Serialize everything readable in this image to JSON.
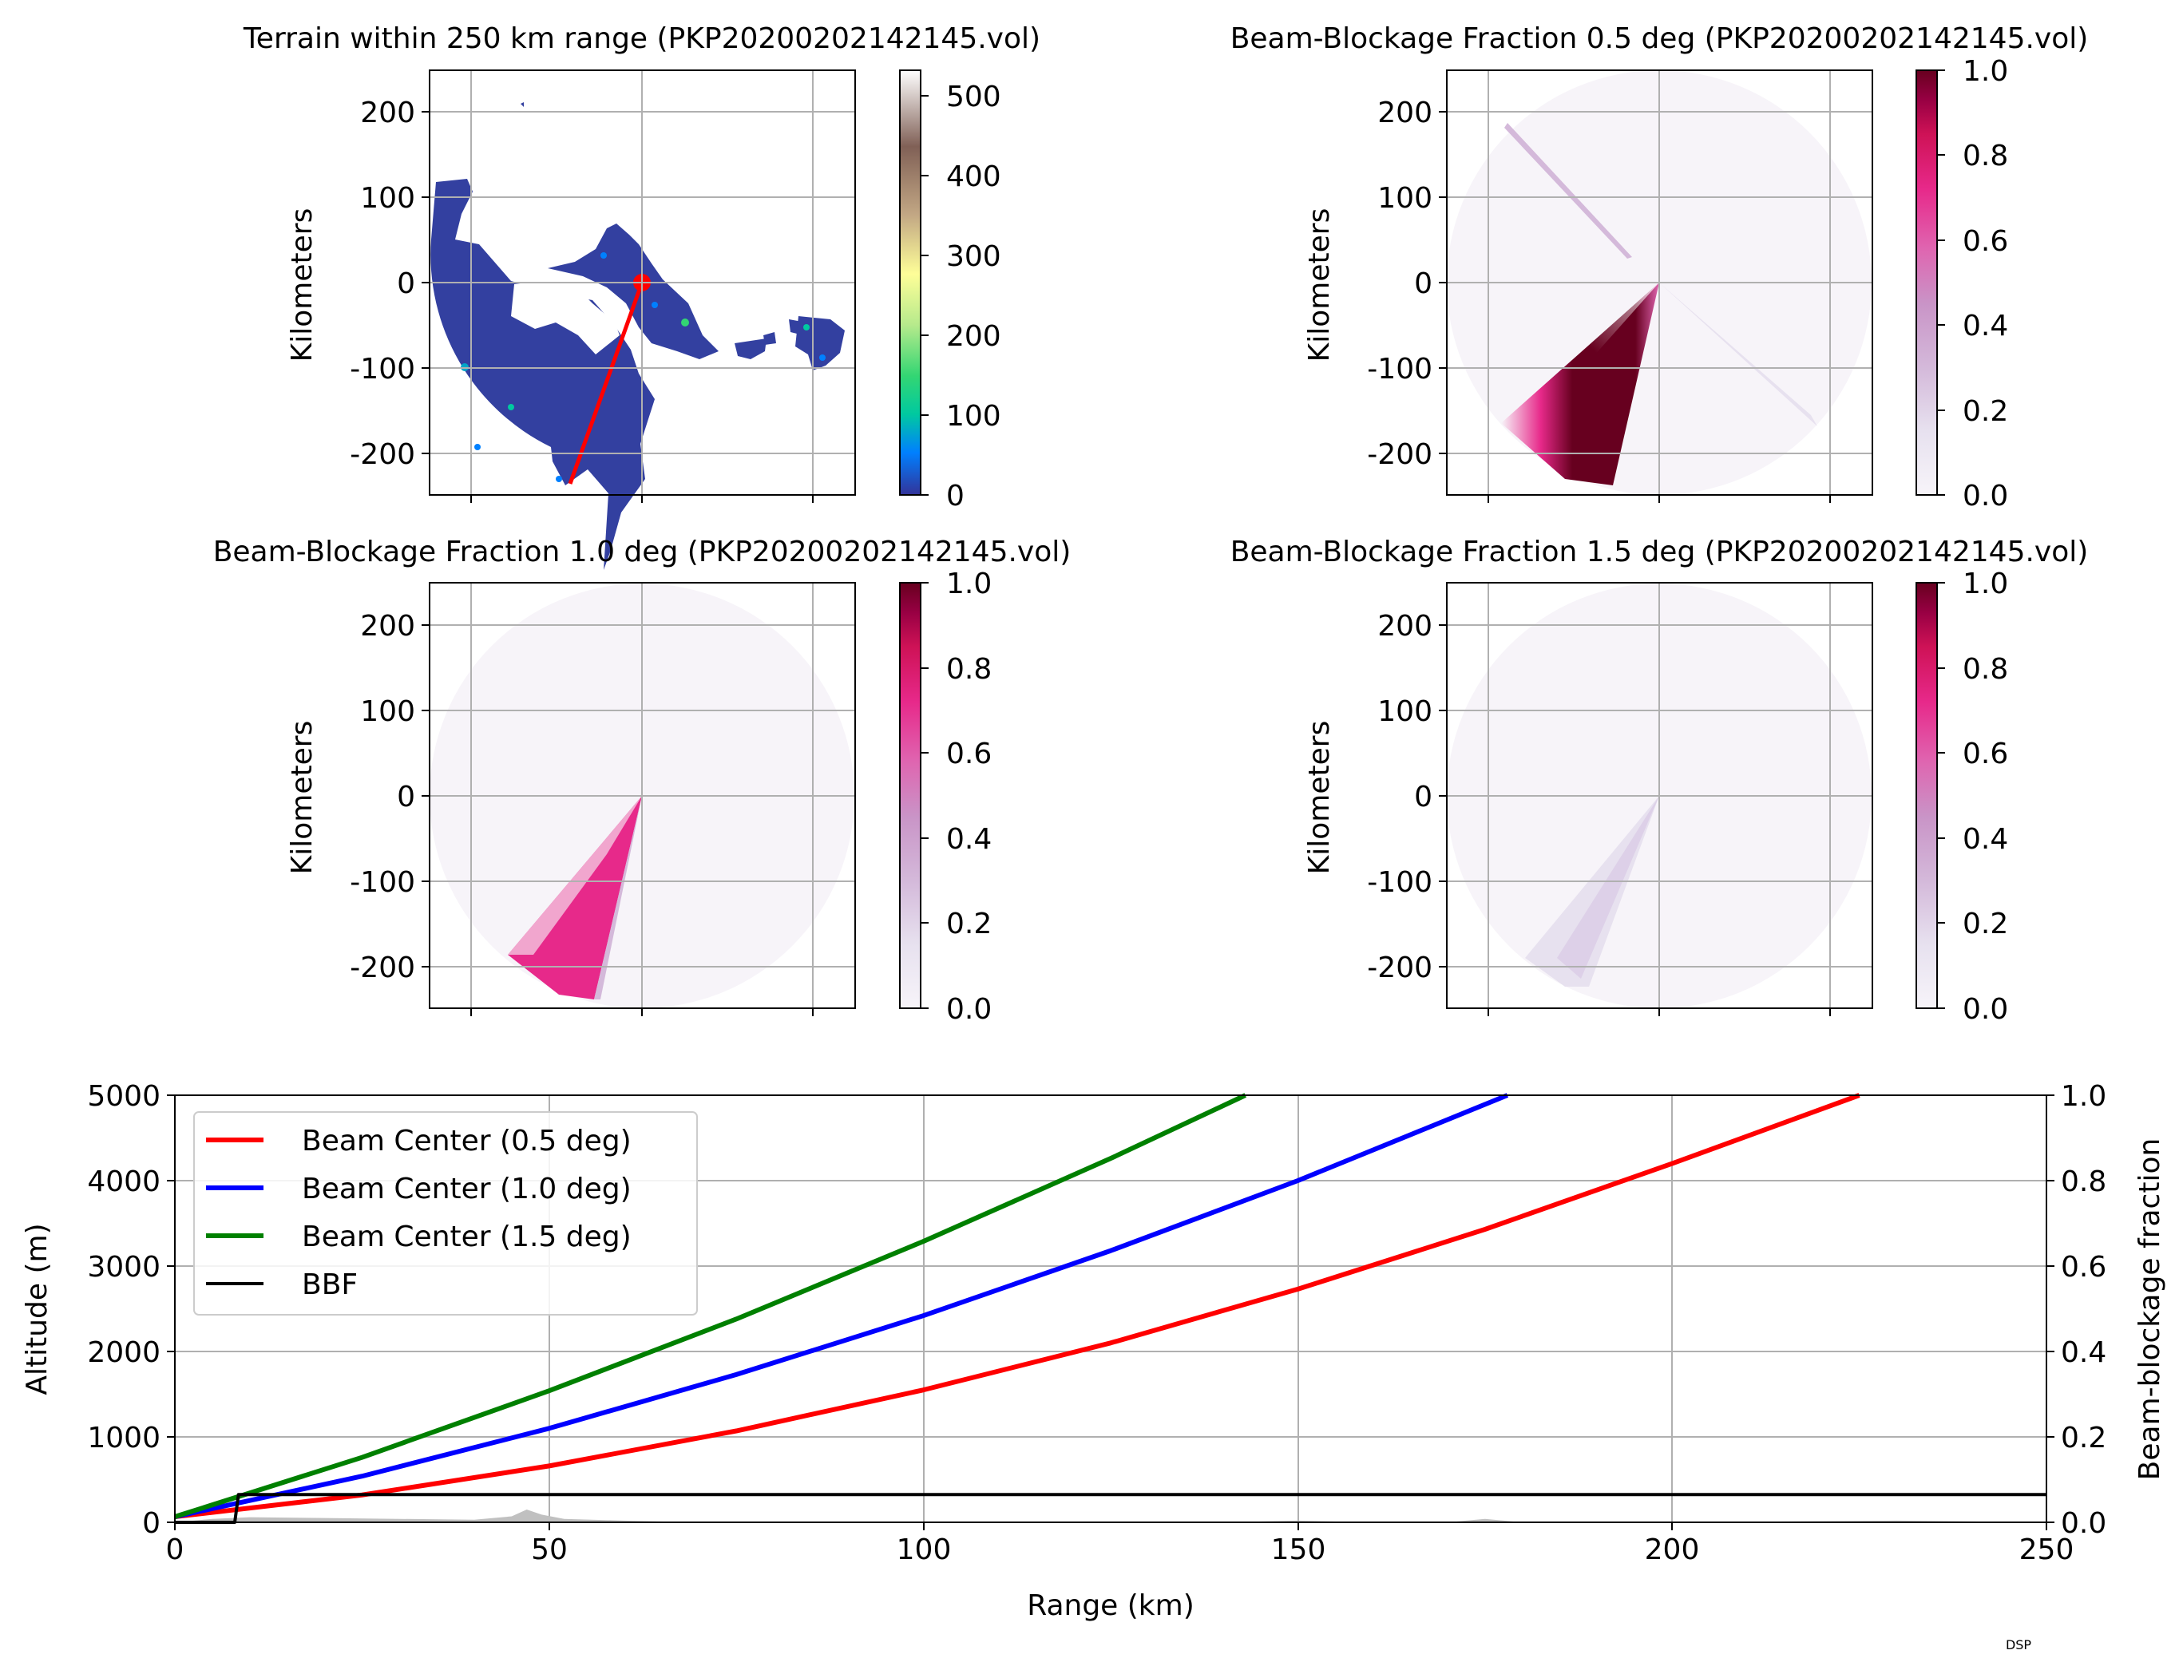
{
  "footer_tag": "DSP",
  "chart_data": [
    {
      "type": "heatmap",
      "title": "Terrain within 250 km range (PKP20200202142145.vol)",
      "ylabel": "Kilometers",
      "xlim": [
        -250,
        250
      ],
      "ylim": [
        -250,
        250
      ],
      "yticks": [
        "200",
        "100",
        "0",
        "-100",
        "-200"
      ],
      "grid": true,
      "colorbar": {
        "range": [
          0,
          530
        ],
        "ticks": [
          "500",
          "400",
          "300",
          "200",
          "100",
          "0"
        ],
        "colormap": "terrain"
      },
      "overlay": {
        "radar_site": [
          0,
          0
        ],
        "profile_line_end": [
          -85,
          -235
        ],
        "color": "#ff0000"
      }
    },
    {
      "type": "heatmap",
      "title": "Beam-Blockage Fraction 0.5 deg (PKP20200202142145.vol)",
      "ylabel": "Kilometers",
      "xlim": [
        -250,
        250
      ],
      "ylim": [
        -250,
        250
      ],
      "yticks": [
        "200",
        "100",
        "0",
        "-100",
        "-200"
      ],
      "grid": true,
      "colorbar": {
        "range": [
          0,
          1
        ],
        "ticks": [
          "1.0",
          "0.8",
          "0.6",
          "0.4",
          "0.2",
          "0.0"
        ],
        "colormap": "PuRd"
      }
    },
    {
      "type": "heatmap",
      "title": "Beam-Blockage Fraction 1.0 deg (PKP20200202142145.vol)",
      "ylabel": "Kilometers",
      "xlim": [
        -250,
        250
      ],
      "ylim": [
        -250,
        250
      ],
      "yticks": [
        "200",
        "100",
        "0",
        "-100",
        "-200"
      ],
      "grid": true,
      "colorbar": {
        "range": [
          0,
          1
        ],
        "ticks": [
          "1.0",
          "0.8",
          "0.6",
          "0.4",
          "0.2",
          "0.0"
        ],
        "colormap": "PuRd"
      }
    },
    {
      "type": "heatmap",
      "title": "Beam-Blockage Fraction 1.5 deg (PKP20200202142145.vol)",
      "ylabel": "Kilometers",
      "xlim": [
        -250,
        250
      ],
      "ylim": [
        -250,
        250
      ],
      "yticks": [
        "200",
        "100",
        "0",
        "-100",
        "-200"
      ],
      "grid": true,
      "colorbar": {
        "range": [
          0,
          1
        ],
        "ticks": [
          "1.0",
          "0.8",
          "0.6",
          "0.4",
          "0.2",
          "0.0"
        ],
        "colormap": "PuRd"
      }
    },
    {
      "type": "line",
      "xlabel": "Range (km)",
      "ylabel": "Altitude (m)",
      "y2label": "Beam-blockage fraction",
      "xlim": [
        0,
        250
      ],
      "ylim": [
        0,
        5000
      ],
      "y2lim": [
        0,
        1
      ],
      "xticks": [
        "0",
        "50",
        "100",
        "150",
        "200",
        "250"
      ],
      "yticks": [
        "0",
        "1000",
        "2000",
        "3000",
        "4000",
        "5000"
      ],
      "y2ticks": [
        "0.0",
        "0.2",
        "0.4",
        "0.6",
        "0.8",
        "1.0"
      ],
      "grid": true,
      "legend_position": "top-left",
      "series": [
        {
          "name": "Beam Center (0.5 deg)",
          "color": "#ff0000",
          "elevation": 0.5,
          "x": [
            0,
            25,
            50,
            75,
            100,
            125,
            150,
            175,
            200,
            225
          ],
          "y": [
            65,
            320,
            660,
            1070,
            1550,
            2100,
            2730,
            3430,
            4200,
            5000
          ]
        },
        {
          "name": "Beam Center (1.0 deg)",
          "color": "#0000ff",
          "elevation": 1.0,
          "x": [
            0,
            25,
            50,
            75,
            100,
            125,
            150,
            178
          ],
          "y": [
            65,
            540,
            1100,
            1730,
            2420,
            3180,
            4000,
            5000
          ]
        },
        {
          "name": "Beam Center (1.5 deg)",
          "color": "#008000",
          "elevation": 1.5,
          "x": [
            0,
            25,
            50,
            75,
            100,
            125,
            143
          ],
          "y": [
            65,
            760,
            1540,
            2380,
            3290,
            4260,
            5000
          ]
        },
        {
          "name": "BBF",
          "color": "#000000",
          "axis": "y2",
          "x": [
            0,
            8,
            8.5,
            250
          ],
          "y": [
            0.0,
            0.0,
            0.065,
            0.065
          ]
        }
      ],
      "terrain_profile": {
        "color": "#c0c0c0",
        "x": [
          0,
          5,
          10,
          20,
          30,
          40,
          45,
          47,
          49,
          52,
          60,
          70,
          100,
          140,
          150,
          160,
          170,
          175,
          180,
          200,
          230,
          240,
          250
        ],
        "y": [
          0,
          40,
          60,
          50,
          40,
          30,
          70,
          150,
          90,
          40,
          20,
          0,
          0,
          0,
          20,
          0,
          0,
          40,
          0,
          0,
          20,
          10,
          0
        ]
      }
    }
  ]
}
